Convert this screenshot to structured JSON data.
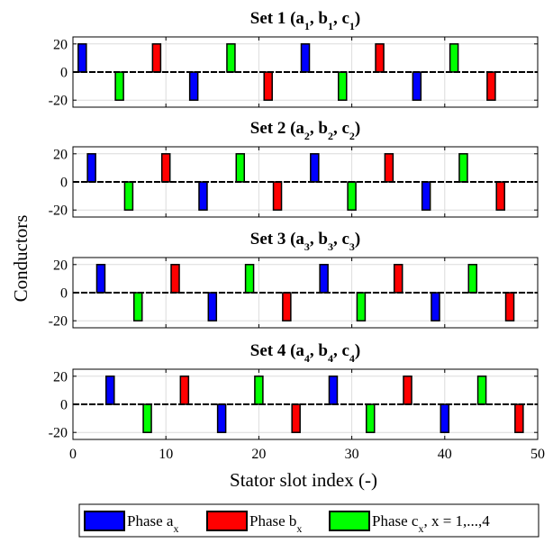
{
  "figure": {
    "ylabel": "Conductors",
    "xlabel": "Stator slot index (-)",
    "x_ticks": [
      "0",
      "10",
      "20",
      "30",
      "40",
      "50"
    ]
  },
  "legend": {
    "items": [
      {
        "main": "Phase a",
        "sub": "x",
        "tail": "",
        "color": "#0000ff"
      },
      {
        "main": "Phase b",
        "sub": "x",
        "tail": "",
        "color": "#ff0000"
      },
      {
        "main": "Phase c",
        "sub": "x",
        "tail": ", x = 1,...,4",
        "color": "#00ff00"
      }
    ]
  },
  "chart_data": [
    {
      "type": "bar",
      "title": "Set 1 (a1, b1, c1)",
      "title_parts": {
        "prefix": "Set 1 (",
        "vars": [
          [
            "a",
            "1"
          ],
          [
            "b",
            "1"
          ],
          [
            "c",
            "1"
          ]
        ]
      },
      "xlim": [
        0,
        50
      ],
      "ylim": [
        -25,
        25
      ],
      "y_ticks": [
        "20",
        "0",
        "-20"
      ],
      "y_tick_values": [
        20,
        0,
        -20
      ],
      "grid": true,
      "series": [
        {
          "name": "Phase a",
          "color": "#0000ff",
          "slots": [
            1,
            13,
            25,
            37
          ],
          "values": [
            20,
            -20,
            20,
            -20
          ]
        },
        {
          "name": "Phase b",
          "color": "#ff0000",
          "slots": [
            9,
            21,
            33,
            45
          ],
          "values": [
            20,
            -20,
            20,
            -20
          ]
        },
        {
          "name": "Phase c",
          "color": "#00ff00",
          "slots": [
            5,
            17,
            29,
            41
          ],
          "values": [
            -20,
            20,
            -20,
            20
          ]
        }
      ]
    },
    {
      "type": "bar",
      "title": "Set 2 (a2, b2, c2)",
      "title_parts": {
        "prefix": "Set 2 (",
        "vars": [
          [
            "a",
            "2"
          ],
          [
            "b",
            "2"
          ],
          [
            "c",
            "2"
          ]
        ]
      },
      "xlim": [
        0,
        50
      ],
      "ylim": [
        -25,
        25
      ],
      "y_ticks": [
        "20",
        "0",
        "-20"
      ],
      "y_tick_values": [
        20,
        0,
        -20
      ],
      "grid": true,
      "series": [
        {
          "name": "Phase a",
          "color": "#0000ff",
          "slots": [
            2,
            14,
            26,
            38
          ],
          "values": [
            20,
            -20,
            20,
            -20
          ]
        },
        {
          "name": "Phase b",
          "color": "#ff0000",
          "slots": [
            10,
            22,
            34,
            46
          ],
          "values": [
            20,
            -20,
            20,
            -20
          ]
        },
        {
          "name": "Phase c",
          "color": "#00ff00",
          "slots": [
            6,
            18,
            30,
            42
          ],
          "values": [
            -20,
            20,
            -20,
            20
          ]
        }
      ]
    },
    {
      "type": "bar",
      "title": "Set 3 (a3, b3, c3)",
      "title_parts": {
        "prefix": "Set 3 (",
        "vars": [
          [
            "a",
            "3"
          ],
          [
            "b",
            "3"
          ],
          [
            "c",
            "3"
          ]
        ]
      },
      "xlim": [
        0,
        50
      ],
      "ylim": [
        -25,
        25
      ],
      "y_ticks": [
        "20",
        "0",
        "-20"
      ],
      "y_tick_values": [
        20,
        0,
        -20
      ],
      "grid": true,
      "series": [
        {
          "name": "Phase a",
          "color": "#0000ff",
          "slots": [
            3,
            15,
            27,
            39
          ],
          "values": [
            20,
            -20,
            20,
            -20
          ]
        },
        {
          "name": "Phase b",
          "color": "#ff0000",
          "slots": [
            11,
            23,
            35,
            47
          ],
          "values": [
            20,
            -20,
            20,
            -20
          ]
        },
        {
          "name": "Phase c",
          "color": "#00ff00",
          "slots": [
            7,
            19,
            31,
            43
          ],
          "values": [
            -20,
            20,
            -20,
            20
          ]
        }
      ]
    },
    {
      "type": "bar",
      "title": "Set 4 (a4, b4, c4)",
      "title_parts": {
        "prefix": "Set 4 (",
        "vars": [
          [
            "a",
            "4"
          ],
          [
            "b",
            "4"
          ],
          [
            "c",
            "4"
          ]
        ]
      },
      "xlim": [
        0,
        50
      ],
      "ylim": [
        -25,
        25
      ],
      "y_ticks": [
        "20",
        "0",
        "-20"
      ],
      "y_tick_values": [
        20,
        0,
        -20
      ],
      "grid": true,
      "series": [
        {
          "name": "Phase a",
          "color": "#0000ff",
          "slots": [
            4,
            16,
            28,
            40
          ],
          "values": [
            20,
            -20,
            20,
            -20
          ]
        },
        {
          "name": "Phase b",
          "color": "#ff0000",
          "slots": [
            12,
            24,
            36,
            48
          ],
          "values": [
            20,
            -20,
            20,
            -20
          ]
        },
        {
          "name": "Phase c",
          "color": "#00ff00",
          "slots": [
            8,
            20,
            32,
            44
          ],
          "values": [
            -20,
            20,
            -20,
            20
          ]
        }
      ]
    }
  ]
}
